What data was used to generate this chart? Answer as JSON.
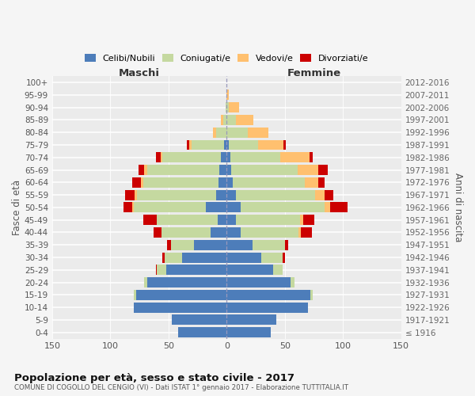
{
  "age_groups": [
    "100+",
    "95-99",
    "90-94",
    "85-89",
    "80-84",
    "75-79",
    "70-74",
    "65-69",
    "60-64",
    "55-59",
    "50-54",
    "45-49",
    "40-44",
    "35-39",
    "30-34",
    "25-29",
    "20-24",
    "15-19",
    "10-14",
    "5-9",
    "0-4"
  ],
  "birth_years": [
    "≤ 1916",
    "1917-1921",
    "1922-1926",
    "1927-1931",
    "1932-1936",
    "1937-1941",
    "1942-1946",
    "1947-1951",
    "1952-1956",
    "1957-1961",
    "1962-1966",
    "1967-1971",
    "1972-1976",
    "1977-1981",
    "1982-1986",
    "1987-1991",
    "1992-1996",
    "1997-2001",
    "2002-2006",
    "2007-2011",
    "2012-2016"
  ],
  "males": {
    "celibe": [
      0,
      0,
      0,
      0,
      0,
      2,
      5,
      6,
      7,
      9,
      18,
      8,
      14,
      28,
      38,
      52,
      68,
      78,
      80,
      47,
      42
    ],
    "coniugato": [
      0,
      0,
      1,
      3,
      9,
      28,
      50,
      62,
      65,
      68,
      62,
      52,
      42,
      20,
      15,
      8,
      3,
      2,
      0,
      0,
      0
    ],
    "vedovo": [
      0,
      0,
      0,
      2,
      3,
      2,
      2,
      3,
      2,
      2,
      1,
      0,
      0,
      0,
      0,
      0,
      0,
      0,
      0,
      0,
      0
    ],
    "divorziato": [
      0,
      0,
      0,
      0,
      0,
      2,
      4,
      5,
      7,
      8,
      8,
      12,
      7,
      3,
      2,
      1,
      0,
      0,
      0,
      0,
      0
    ]
  },
  "females": {
    "nubile": [
      0,
      0,
      0,
      0,
      0,
      2,
      3,
      4,
      5,
      8,
      12,
      8,
      12,
      22,
      30,
      40,
      55,
      72,
      70,
      43,
      38
    ],
    "coniugata": [
      0,
      0,
      2,
      8,
      18,
      25,
      43,
      57,
      62,
      68,
      72,
      55,
      50,
      28,
      18,
      8,
      3,
      2,
      0,
      0,
      0
    ],
    "vedova": [
      0,
      2,
      9,
      15,
      18,
      22,
      25,
      18,
      12,
      8,
      5,
      3,
      2,
      0,
      0,
      0,
      0,
      0,
      0,
      0,
      0
    ],
    "divorziata": [
      0,
      0,
      0,
      0,
      0,
      2,
      3,
      8,
      5,
      8,
      15,
      9,
      9,
      3,
      2,
      0,
      0,
      0,
      0,
      0,
      0
    ]
  },
  "color_celibe": "#4d7dba",
  "color_coniugato": "#c5d9a0",
  "color_vedovo": "#ffc06f",
  "color_divorziato": "#cc0000",
  "title_main": "Popolazione per età, sesso e stato civile - 2017",
  "title_sub": "COMUNE DI COGOLLO DEL CENGIO (VI) - Dati ISTAT 1° gennaio 2017 - Elaborazione TUTTITALIA.IT",
  "xlabel_left": "Maschi",
  "xlabel_right": "Femmine",
  "ylabel_left": "Fasce di età",
  "ylabel_right": "Anni di nascita",
  "xlim": 150,
  "bg_axes": "#ebebeb",
  "bg_fig": "#f5f5f5",
  "legend_labels": [
    "Celibi/Nubili",
    "Coniugati/e",
    "Vedovi/e",
    "Divorziati/e"
  ]
}
